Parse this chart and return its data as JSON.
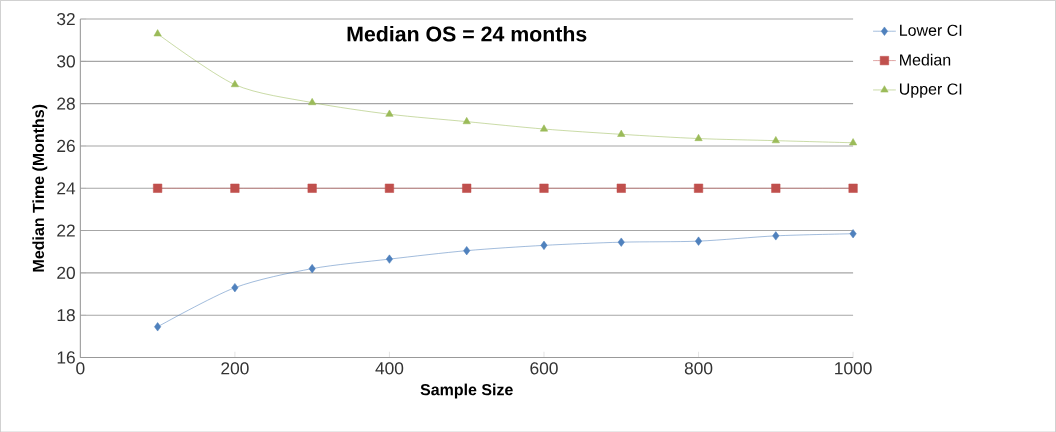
{
  "chart_data": {
    "type": "line",
    "title": "Median OS = 24 months",
    "xlabel": "Sample Size",
    "ylabel": "Median Time (Months)",
    "x": [
      100,
      200,
      300,
      400,
      500,
      600,
      700,
      800,
      900,
      1000
    ],
    "series": [
      {
        "name": "Lower CI",
        "color": "#4f81bd",
        "marker": "diamond",
        "values": [
          17.45,
          19.3,
          20.2,
          20.65,
          21.05,
          21.3,
          21.45,
          21.5,
          21.75,
          21.85
        ]
      },
      {
        "name": "Median",
        "color": "#c0504d",
        "marker": "square",
        "values": [
          24,
          24,
          24,
          24,
          24,
          24,
          24,
          24,
          24,
          24
        ]
      },
      {
        "name": "Upper CI",
        "color": "#9bbb59",
        "marker": "triangle",
        "values": [
          31.3,
          28.9,
          28.05,
          27.5,
          27.15,
          26.8,
          26.55,
          26.35,
          26.25,
          26.15
        ]
      }
    ],
    "xlim": [
      0,
      1000
    ],
    "ylim": [
      16,
      32
    ],
    "xticks": [
      0,
      200,
      400,
      600,
      800,
      1000
    ],
    "yticks": [
      16,
      18,
      20,
      22,
      24,
      26,
      28,
      30,
      32
    ],
    "grid": "y",
    "legend": "right",
    "line_style": "solid"
  }
}
